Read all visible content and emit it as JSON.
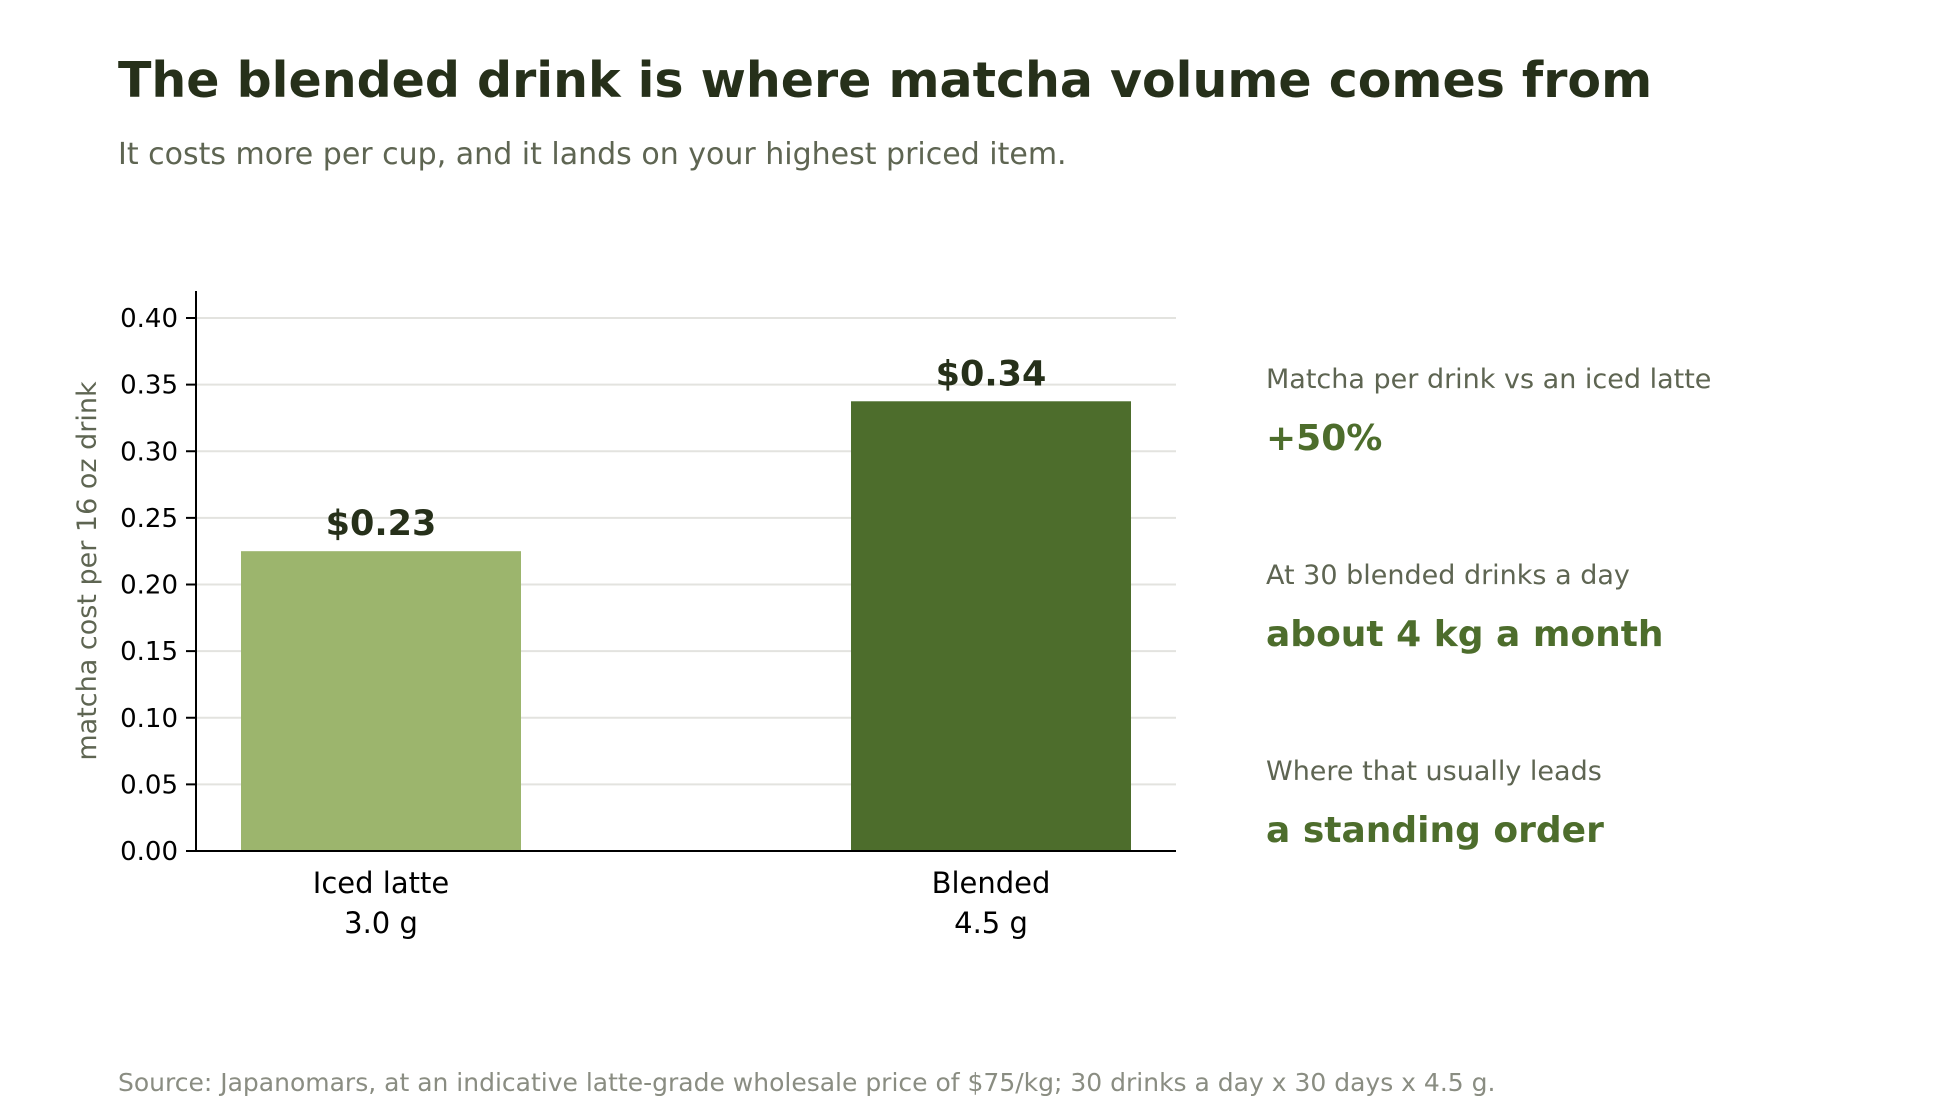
{
  "title": "The blended drink is where matcha volume comes from",
  "subtitle": "It costs more per cup, and it lands on your highest priced item.",
  "chart_data": {
    "type": "bar",
    "categories": [
      "Iced latte",
      "Blended"
    ],
    "category_sublabels": [
      "3.0 g",
      "4.5 g"
    ],
    "values": [
      0.225,
      0.3375
    ],
    "data_labels": [
      "$0.23",
      "$0.34"
    ],
    "bar_colors": [
      "#9cb56d",
      "#4d6d2c"
    ],
    "ylabel": "matcha cost per 16 oz drink",
    "xlabel": "",
    "ylim": [
      0,
      0.42
    ],
    "yticks": [
      "0.00",
      "0.05",
      "0.10",
      "0.15",
      "0.20",
      "0.25",
      "0.30",
      "0.35",
      "0.40"
    ],
    "grid": true
  },
  "stats": [
    {
      "label": "Matcha per drink vs an iced latte",
      "value": "+50%"
    },
    {
      "label": "At 30 blended drinks a day",
      "value": "about 4 kg a month"
    },
    {
      "label": "Where that usually leads",
      "value": "a standing order"
    }
  ],
  "source": "Source: Japanomars, at an indicative latte-grade wholesale price of $75/kg; 30 drinks a day x 30 days x 4.5 g."
}
